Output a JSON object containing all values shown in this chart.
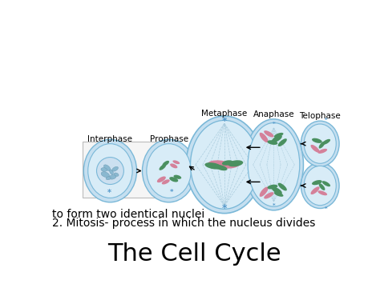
{
  "title": "The Cell Cycle",
  "subtitle_line1": "2. Mitosis- process in which the nucleus divides",
  "subtitle_line2": "to form two identical nuclei",
  "background_color": "#ffffff",
  "title_fontsize": 22,
  "subtitle_fontsize": 10,
  "cell_color_outer": "#c5dff0",
  "cell_color_inner": "#d8ecf7",
  "cell_color_light": "#e8f4fb",
  "cell_border": "#7ab8d8",
  "chrom_green": "#4a9060",
  "chrom_pink": "#d4819a",
  "chrom_green2": "#5aaa70",
  "stages": [
    "Interphase",
    "Prophase",
    "Metaphase",
    "Anaphase",
    "Telophase"
  ]
}
